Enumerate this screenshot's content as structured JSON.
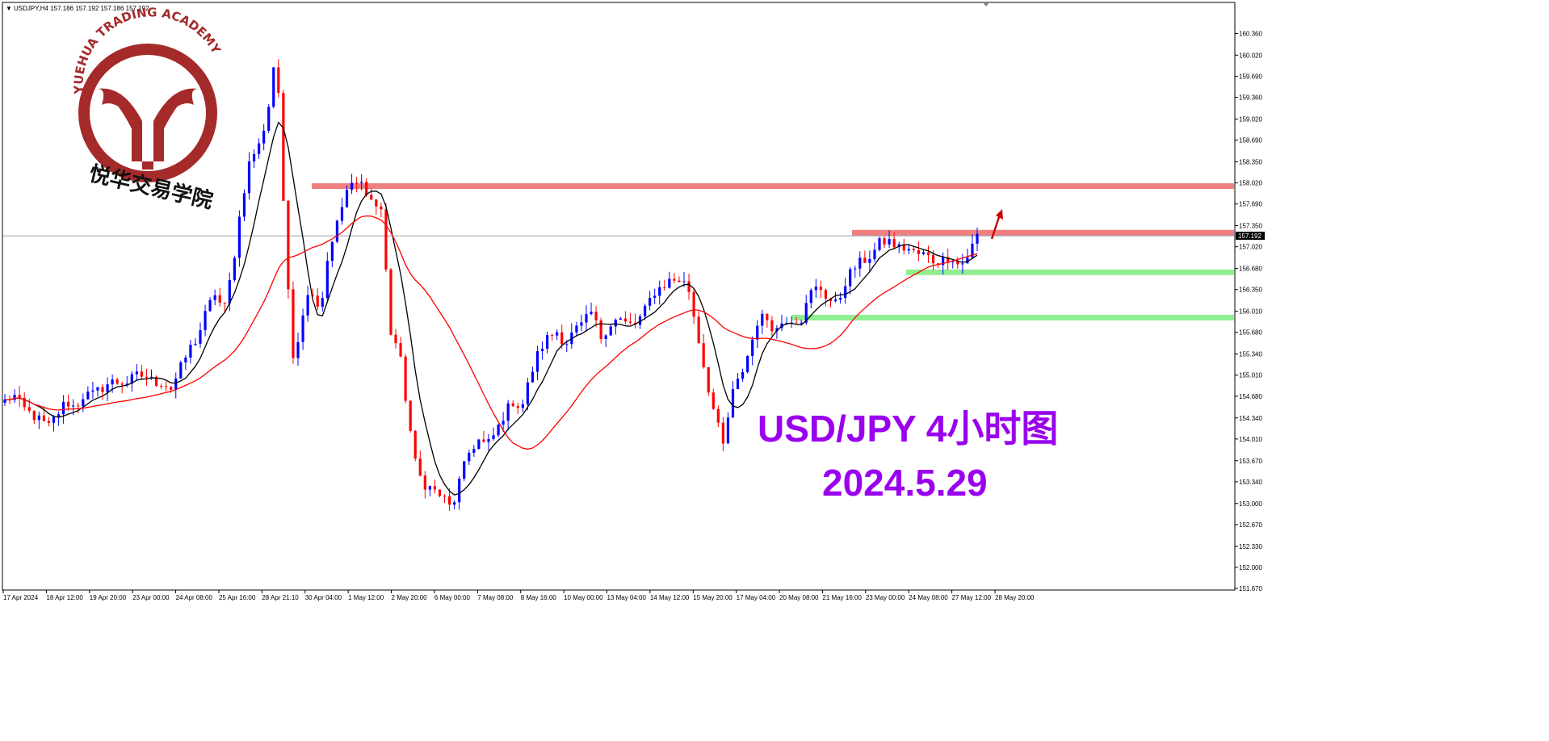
{
  "header": {
    "symbol_text": "USDJPY,H4  157.186 157.192 157.186 157.192",
    "marker": "▼"
  },
  "logo": {
    "arc_text": "YUEHUA TRADING ACADEMY",
    "cn_name": "悦华交易学院",
    "color": "#a52a2a"
  },
  "title": {
    "line1": "USD/JPY 4小时图",
    "line2": "2024.5.29",
    "color": "#9900ee"
  },
  "colors": {
    "bull": "#0000ff",
    "bear": "#ff0000",
    "ma_fast": "#000000",
    "ma_slow": "#ff0000",
    "resistance": "#f08080",
    "support": "#90ee90",
    "arrow": "#cc0000",
    "price_line": "#708090"
  },
  "chart_data": {
    "type": "candlestick",
    "symbol": "USDJPY",
    "timeframe": "H4",
    "ylim": [
      151.67,
      160.53
    ],
    "y_ticks": [
      "160.360",
      "160.020",
      "159.690",
      "159.360",
      "159.020",
      "158.690",
      "158.350",
      "158.020",
      "157.690",
      "157.350",
      "157.020",
      "156.680",
      "156.350",
      "156.010",
      "155.680",
      "155.340",
      "155.010",
      "154.680",
      "154.340",
      "154.010",
      "153.670",
      "153.340",
      "153.000",
      "152.670",
      "152.330",
      "152.000",
      "151.670"
    ],
    "x_ticks": [
      "17 Apr 2024",
      "18 Apr 12:00",
      "19 Apr 20:00",
      "23 Apr 00:00",
      "24 Apr 08:00",
      "25 Apr 16:00",
      "28 Apr 21:10",
      "30 Apr 04:00",
      "1 May 12:00",
      "2 May 20:00",
      "6 May 00:00",
      "7 May 08:00",
      "8 May 16:00",
      "10 May 00:00",
      "13 May 04:00",
      "14 May 12:00",
      "15 May 20:00",
      "17 May 04:00",
      "20 May 08:00",
      "21 May 16:00",
      "23 May 00:00",
      "24 May 08:00",
      "27 May 12:00",
      "28 May 20:00"
    ],
    "current_price": "157.192",
    "resistance_levels": [
      157.97,
      157.24
    ],
    "support_levels": [
      156.62,
      155.91
    ],
    "ohlc_path": [
      154.6,
      154.7,
      154.5,
      154.4,
      154.3,
      154.2,
      154.4,
      154.6,
      154.5,
      154.7,
      154.7,
      154.8,
      154.9,
      154.9,
      154.9,
      155.0,
      155.0,
      154.9,
      154.9,
      154.8,
      155.1,
      155.4,
      155.6,
      156.0,
      156.3,
      156.0,
      156.7,
      157.7,
      158.4,
      158.6,
      159.1,
      160.2,
      157.0,
      155.2,
      156.0,
      156.4,
      156.0,
      157.0,
      157.4,
      157.9,
      158.0,
      158.0,
      157.7,
      157.6,
      155.7,
      155.4,
      154.4,
      153.5,
      153.3,
      153.2,
      153.1,
      152.9,
      153.4,
      153.8,
      154.0,
      153.9,
      154.1,
      154.4,
      154.6,
      154.5,
      155.0,
      155.4,
      155.6,
      155.7,
      155.5,
      155.7,
      155.8,
      156.0,
      155.6,
      155.8,
      155.9,
      155.8,
      155.8,
      156.0,
      156.3,
      156.4,
      156.5,
      156.5,
      156.4,
      155.7,
      155.0,
      154.4,
      153.9,
      154.7,
      155.0,
      155.4,
      155.9,
      155.9,
      155.7,
      155.9,
      155.9,
      155.9,
      156.3,
      156.4,
      156.2,
      156.1,
      156.5,
      156.7,
      156.8,
      156.9,
      157.1,
      157.1,
      157.0,
      157.0,
      156.9,
      156.9,
      156.8,
      156.8,
      156.9,
      156.7,
      156.9,
      157.2
    ]
  }
}
